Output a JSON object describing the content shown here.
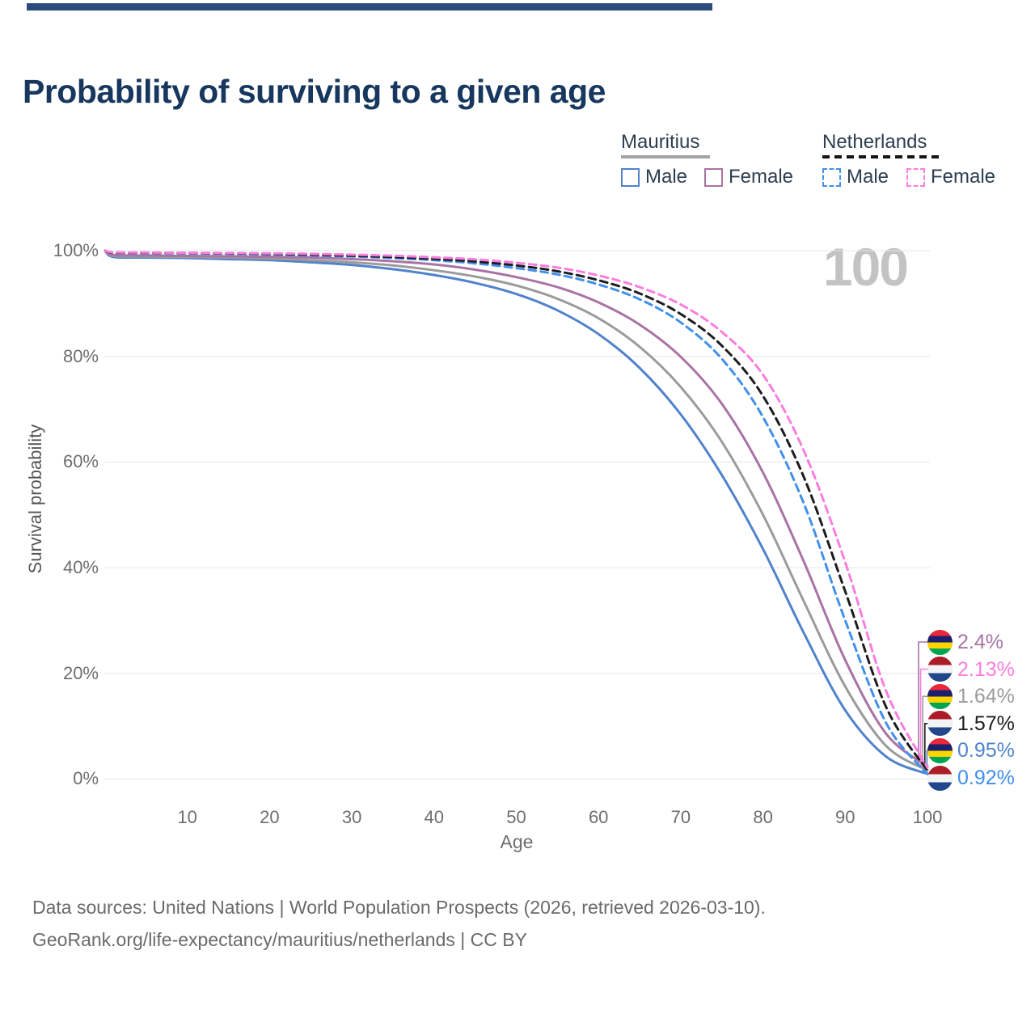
{
  "page": {
    "background": "#ffffff",
    "accent_bar_color": "#2a4b7c"
  },
  "title": "Probability of surviving to a given age",
  "watermark": "100",
  "legend": {
    "position": "top-right",
    "groups": [
      {
        "name": "Mauritius",
        "line_style": "solid",
        "underline_color": "#a3a3a3",
        "items": [
          {
            "label": "Male",
            "color": "#5082cc"
          },
          {
            "label": "Female",
            "color": "#a973a5"
          }
        ]
      },
      {
        "name": "Netherlands",
        "line_style": "dashed",
        "underline_color": "#151515",
        "items": [
          {
            "label": "Male",
            "color": "#4190ec"
          },
          {
            "label": "Female",
            "color": "#fb7ddd"
          }
        ]
      }
    ]
  },
  "chart_data": {
    "type": "line",
    "title": "Probability of surviving to a given age",
    "xlabel": "Age",
    "ylabel": "Survival probability",
    "xlim": [
      0,
      100
    ],
    "ylim": [
      0,
      100
    ],
    "grid": "horizontal",
    "x_ticks": [
      10,
      20,
      30,
      40,
      50,
      60,
      70,
      80,
      90,
      100
    ],
    "y_ticks": [
      "100%",
      "80%",
      "60%",
      "40%",
      "20%",
      "0%"
    ],
    "y_tick_values": [
      100,
      80,
      60,
      40,
      20,
      0
    ],
    "highlighted_age": "100",
    "ages": [
      0,
      1,
      5,
      10,
      15,
      20,
      25,
      30,
      35,
      40,
      45,
      50,
      55,
      60,
      65,
      70,
      75,
      80,
      85,
      90,
      95,
      100
    ],
    "series": [
      {
        "id": "mu-male",
        "name": "Mauritius Male",
        "country": "Mauritius",
        "sex": "Male",
        "color": "#5082cc",
        "dash": false,
        "end_label": "0.95%",
        "values": [
          100,
          98.8,
          98.7,
          98.6,
          98.4,
          98.2,
          97.8,
          97.3,
          96.5,
          95.4,
          93.9,
          91.8,
          88.7,
          84.2,
          77.8,
          69.0,
          57.5,
          43.5,
          27.5,
          13.0,
          4.2,
          0.95
        ]
      },
      {
        "id": "mu-all",
        "name": "Mauritius Both sexes",
        "country": "Mauritius",
        "sex": "Both",
        "color": "#9b9b9b",
        "dash": false,
        "end_label": "1.64%",
        "values": [
          100,
          99.0,
          98.9,
          98.8,
          98.7,
          98.5,
          98.2,
          97.8,
          97.2,
          96.3,
          95.1,
          93.4,
          90.9,
          87.2,
          81.8,
          74.2,
          63.8,
          50.0,
          33.5,
          17.5,
          6.2,
          1.64
        ]
      },
      {
        "id": "mu-female",
        "name": "Mauritius Female",
        "country": "Mauritius",
        "sex": "Female",
        "color": "#a973a5",
        "dash": false,
        "end_label": "2.4%",
        "values": [
          100,
          99.2,
          99.1,
          99.0,
          98.95,
          98.85,
          98.7,
          98.4,
          98.0,
          97.4,
          96.4,
          95.0,
          93.1,
          90.2,
          86.0,
          79.9,
          71.0,
          58.0,
          41.0,
          22.5,
          8.5,
          2.4
        ]
      },
      {
        "id": "nl-male",
        "name": "Netherlands Male",
        "country": "Netherlands",
        "sex": "Male",
        "color": "#4190ec",
        "dash": true,
        "end_label": "0.92%",
        "values": [
          100,
          99.6,
          99.55,
          99.5,
          99.4,
          99.3,
          99.1,
          98.9,
          98.6,
          98.2,
          97.6,
          96.7,
          95.5,
          93.6,
          90.8,
          86.4,
          79.5,
          68.5,
          52.0,
          30.0,
          10.5,
          0.92
        ]
      },
      {
        "id": "nl-all",
        "name": "Netherlands Both sexes",
        "country": "Netherlands",
        "sex": "Both",
        "color": "#1c1c1c",
        "dash": true,
        "end_label": "1.57%",
        "values": [
          100,
          99.65,
          99.6,
          99.55,
          99.5,
          99.4,
          99.25,
          99.05,
          98.8,
          98.45,
          97.95,
          97.2,
          96.1,
          94.4,
          91.9,
          88.0,
          82.0,
          72.5,
          57.0,
          35.5,
          13.5,
          1.57
        ]
      },
      {
        "id": "nl-female",
        "name": "Netherlands Female",
        "country": "Netherlands",
        "sex": "Female",
        "color": "#fb7ddd",
        "dash": true,
        "end_label": "2.13%",
        "values": [
          100,
          99.7,
          99.65,
          99.6,
          99.55,
          99.5,
          99.4,
          99.25,
          99.05,
          98.75,
          98.35,
          97.7,
          96.8,
          95.3,
          93.1,
          89.8,
          84.6,
          76.5,
          62.0,
          41.0,
          16.5,
          2.13
        ]
      }
    ]
  },
  "end_labels": [
    {
      "label": "2.4%",
      "series": "mu-female",
      "flag": "mauritius",
      "text_color": "#a973a5"
    },
    {
      "label": "2.13%",
      "series": "nl-female",
      "flag": "netherlands",
      "text_color": "#fb7ddd"
    },
    {
      "label": "1.64%",
      "series": "mu-all",
      "flag": "mauritius",
      "text_color": "#9b9b9b"
    },
    {
      "label": "1.57%",
      "series": "nl-all",
      "flag": "netherlands",
      "text_color": "#1c1c1c"
    },
    {
      "label": "0.95%",
      "series": "mu-male",
      "flag": "mauritius",
      "text_color": "#5082cc"
    },
    {
      "label": "0.92%",
      "series": "nl-male",
      "flag": "netherlands",
      "text_color": "#4190ec"
    }
  ],
  "flags": {
    "mauritius": [
      "#EA2839",
      "#1A206D",
      "#FFD500",
      "#00A551"
    ],
    "netherlands": [
      "#AE1C28",
      "#F2F3F5",
      "#21468B"
    ]
  },
  "footer": {
    "line1": "Data sources: United Nations | World Population Prospects (2026, retrieved 2026-03-10).",
    "line2": "GeoRank.org/life-expectancy/mauritius/netherlands | CC BY"
  }
}
